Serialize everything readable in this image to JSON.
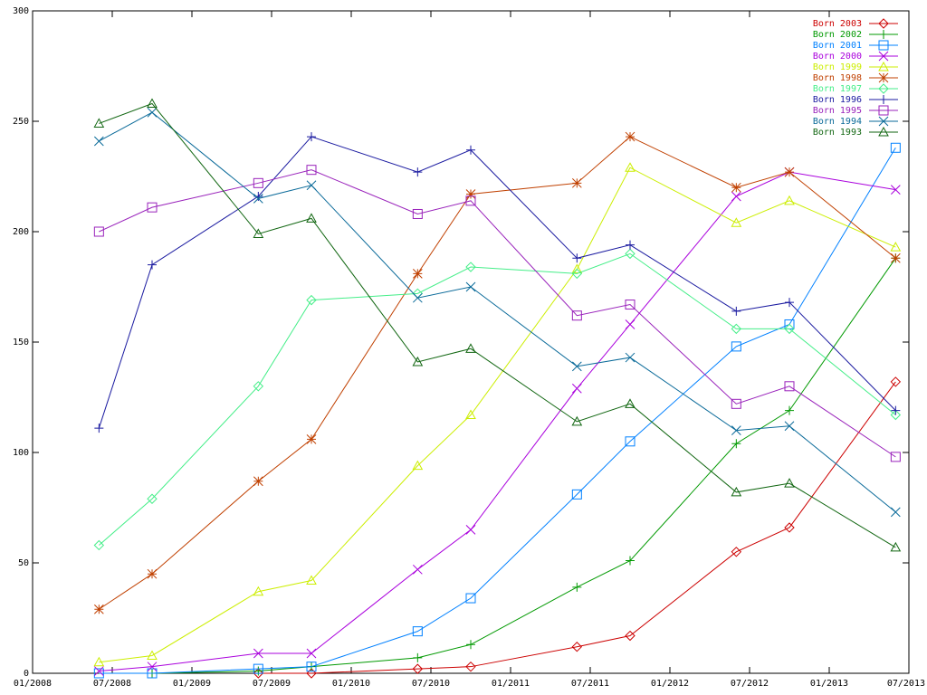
{
  "chart_data": {
    "type": "line",
    "title": "",
    "xlabel": "",
    "ylabel": "",
    "x_ticks": [
      "01/2008",
      "07/2008",
      "01/2009",
      "07/2009",
      "01/2010",
      "07/2010",
      "01/2011",
      "07/2011",
      "01/2012",
      "07/2012",
      "01/2013",
      "07/2013"
    ],
    "y_ticks": [
      "0",
      "50",
      "100",
      "150",
      "200",
      "250",
      "300"
    ],
    "xlim": [
      "2008-01",
      "2013-07"
    ],
    "ylim": [
      0,
      300
    ],
    "grid": false,
    "legend_position": "top-right",
    "x": [
      "2008-06",
      "2008-10",
      "2009-06",
      "2009-10",
      "2010-06",
      "2010-10",
      "2011-06",
      "2011-10",
      "2012-06",
      "2012-10",
      "2013-06"
    ],
    "series": [
      {
        "name": "Born 2003",
        "color": "#cc0000",
        "marker": "diamond",
        "values": [
          null,
          null,
          0,
          0,
          2,
          3,
          12,
          17,
          55,
          66,
          132
        ]
      },
      {
        "name": "Born 2002",
        "color": "#009900",
        "marker": "plus",
        "values": [
          null,
          0,
          1,
          3,
          7,
          13,
          39,
          51,
          104,
          119,
          188
        ]
      },
      {
        "name": "Born 2001",
        "color": "#0080ff",
        "marker": "square",
        "values": [
          0,
          0,
          2,
          3,
          19,
          34,
          81,
          105,
          148,
          158,
          238
        ]
      },
      {
        "name": "Born 2000",
        "color": "#aa00dd",
        "marker": "x",
        "values": [
          1,
          3,
          9,
          9,
          47,
          65,
          129,
          158,
          216,
          227,
          219
        ]
      },
      {
        "name": "Born 1999",
        "color": "#ccee00",
        "marker": "triangle",
        "values": [
          5,
          8,
          37,
          42,
          94,
          117,
          183,
          229,
          204,
          214,
          193
        ]
      },
      {
        "name": "Born 1998",
        "color": "#c04000",
        "marker": "star",
        "values": [
          29,
          45,
          87,
          106,
          181,
          217,
          222,
          243,
          220,
          227,
          188
        ]
      },
      {
        "name": "Born 1997",
        "color": "#44ee88",
        "marker": "diamond",
        "values": [
          58,
          79,
          130,
          169,
          172,
          184,
          181,
          190,
          156,
          156,
          117
        ]
      },
      {
        "name": "Born 1996",
        "color": "#1a1aa0",
        "marker": "plus",
        "values": [
          111,
          185,
          216,
          243,
          227,
          237,
          188,
          194,
          164,
          168,
          119
        ]
      },
      {
        "name": "Born 1995",
        "color": "#9922bb",
        "marker": "square",
        "values": [
          200,
          211,
          222,
          228,
          208,
          214,
          162,
          167,
          122,
          130,
          98
        ]
      },
      {
        "name": "Born 1994",
        "color": "#0a6a99",
        "marker": "x",
        "values": [
          241,
          254,
          215,
          221,
          170,
          175,
          139,
          143,
          110,
          112,
          73
        ]
      },
      {
        "name": "Born 1993",
        "color": "#116611",
        "marker": "triangle",
        "values": [
          249,
          258,
          199,
          206,
          141,
          147,
          114,
          122,
          82,
          86,
          57
        ]
      }
    ]
  }
}
